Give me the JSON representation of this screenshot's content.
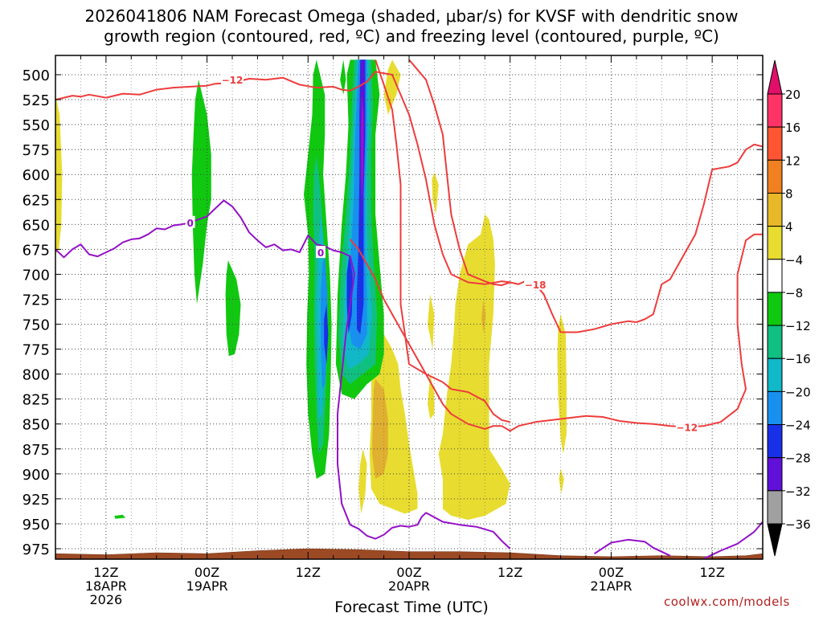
{
  "chart_data": {
    "type": "heatmap",
    "title_line1": "2026041806 NAM Forecast Omega (shaded, μbar/s) for KVSF with dendritic snow",
    "title_line2": "growth region (contoured, red, ºC) and freezing level (contoured, purple, ºC)",
    "xlabel": "Forecast Time (UTC)",
    "ylabel": "",
    "y_axis": {
      "scale": "pressure-inverted",
      "range": [
        990,
        485
      ],
      "ticks": [
        500,
        525,
        550,
        575,
        600,
        625,
        650,
        675,
        700,
        725,
        750,
        775,
        800,
        825,
        850,
        875,
        900,
        925,
        950,
        975
      ]
    },
    "x_axis": {
      "range_hours": [
        6,
        90
      ],
      "ticks": [
        {
          "hour": 12,
          "lines": [
            "12Z",
            "18APR",
            "2026"
          ]
        },
        {
          "hour": 24,
          "lines": [
            "00Z",
            "19APR"
          ]
        },
        {
          "hour": 36,
          "lines": [
            "12Z"
          ]
        },
        {
          "hour": 48,
          "lines": [
            "00Z",
            "20APR"
          ]
        },
        {
          "hour": 60,
          "lines": [
            "12Z"
          ]
        },
        {
          "hour": 72,
          "lines": [
            "00Z",
            "21APR"
          ]
        },
        {
          "hour": 84,
          "lines": [
            "12Z"
          ]
        }
      ]
    },
    "grid": true,
    "colorbar": {
      "labels": [
        "20",
        "16",
        "12",
        "8",
        "4",
        "−4",
        "−8",
        "−12",
        "−16",
        "−20",
        "−24",
        "−28",
        "−32",
        "−36"
      ],
      "colors": [
        "#ff3366",
        "#ff5533",
        "#f08020",
        "#e8b828",
        "#e8dc30",
        "#ffffff",
        "#10c810",
        "#10c080",
        "#10b8c8",
        "#1890f0",
        "#1830e8",
        "#6010d8",
        "#a010d0",
        "#a0a0a0"
      ],
      "top_arrow_color": "#e0106a",
      "bottom_arrow_color": "#000000"
    },
    "omega_colors": {
      "green": "#10c810",
      "teal": "#10c080",
      "cyan": "#10b8c8",
      "lightblue": "#1890f0",
      "blue": "#1830e8",
      "purple": "#6010d8",
      "violet": "#a010d0",
      "yellow": "#e8dc30",
      "gold": "#e0b030"
    },
    "terrain_color": "#9c4a24",
    "contours": [
      {
        "name": "-12",
        "color": "#ee3c3c",
        "labels": [
          {
            "hour": 27,
            "p": 505,
            "text": "−12"
          },
          {
            "hour": 81,
            "p": 853,
            "text": "−12"
          }
        ],
        "lines": [
          [
            [
              6,
              525
            ],
            [
              8,
              521
            ],
            [
              9,
              522
            ],
            [
              10,
              520
            ],
            [
              12,
              523
            ],
            [
              14,
              519
            ],
            [
              16,
              520
            ],
            [
              18,
              515
            ],
            [
              20,
              513
            ],
            [
              22,
              512
            ],
            [
              24,
              511
            ],
            [
              25,
              509
            ],
            [
              27,
              508
            ],
            [
              28,
              506
            ],
            [
              29,
              504
            ],
            [
              31,
              505
            ],
            [
              33,
              503
            ],
            [
              35,
              510
            ],
            [
              37,
              513
            ],
            [
              39,
              512
            ],
            [
              40,
              515
            ],
            [
              41,
              516
            ],
            [
              42,
              512
            ],
            [
              43,
              507
            ],
            [
              44,
              497
            ],
            [
              46,
              500
            ],
            [
              48,
              540
            ],
            [
              49,
              570
            ],
            [
              50,
              605
            ],
            [
              51,
              650
            ],
            [
              52,
              680
            ],
            [
              53,
              700
            ],
            [
              55,
              708
            ],
            [
              57,
              710
            ],
            [
              59,
              707
            ],
            [
              60,
              708
            ],
            [
              61,
              710
            ],
            [
              62,
              706
            ],
            [
              63,
              710
            ],
            [
              64,
              720
            ],
            [
              65,
              740
            ],
            [
              66,
              758
            ],
            [
              68,
              758
            ],
            [
              70,
              755
            ],
            [
              72,
              750
            ],
            [
              74,
              747
            ],
            [
              75,
              748
            ],
            [
              76,
              745
            ],
            [
              77,
              740
            ],
            [
              78,
              710
            ],
            [
              79,
              705
            ],
            [
              80,
              690
            ],
            [
              81,
              675
            ],
            [
              82,
              660
            ],
            [
              83,
              630
            ],
            [
              84,
              595
            ],
            [
              86,
              592
            ],
            [
              87,
              588
            ],
            [
              88,
              575
            ],
            [
              89,
              570
            ],
            [
              90,
              572
            ]
          ],
          [
            [
              90,
              660
            ],
            [
              89,
              660
            ],
            [
              88,
              666
            ],
            [
              87,
              700
            ],
            [
              87,
              750
            ],
            [
              87.5,
              790
            ],
            [
              88,
              815
            ],
            [
              87,
              835
            ],
            [
              85,
              848
            ],
            [
              83,
              852
            ],
            [
              81,
              853
            ],
            [
              79,
              852
            ],
            [
              77,
              850
            ],
            [
              75,
              849
            ],
            [
              73,
              847
            ],
            [
              71,
              843
            ],
            [
              69,
              842
            ],
            [
              67,
              844
            ],
            [
              65,
              846
            ],
            [
              63,
              848
            ],
            [
              61,
              852
            ],
            [
              60,
              857
            ],
            [
              59,
              852
            ],
            [
              58,
              852
            ],
            [
              57,
              855
            ],
            [
              55,
              850
            ],
            [
              53,
              840
            ],
            [
              52,
              830
            ],
            [
              51,
              815
            ],
            [
              50,
              800
            ],
            [
              49,
              785
            ],
            [
              48,
              770
            ],
            [
              47,
              755
            ],
            [
              46,
              740
            ],
            [
              45,
              725
            ],
            [
              44,
              705
            ],
            [
              43,
              690
            ],
            [
              42,
              675
            ],
            [
              41,
              665
            ]
          ]
        ]
      },
      {
        "name": "-18",
        "color": "#ee3c3c",
        "labels": [
          {
            "hour": 63,
            "p": 710,
            "text": "−18"
          }
        ],
        "lines": [
          [
            [
              48,
              485
            ],
            [
              50,
              505
            ],
            [
              51,
              530
            ],
            [
              52,
              560
            ],
            [
              52.5,
              600
            ],
            [
              53,
              640
            ],
            [
              54,
              675
            ],
            [
              55,
              700
            ],
            [
              57,
              707
            ],
            [
              58,
              710
            ],
            [
              59,
              711
            ],
            [
              60,
              708
            ],
            [
              61,
              710
            ]
          ],
          [
            [
              44,
              485
            ],
            [
              45,
              510
            ],
            [
              46,
              535
            ],
            [
              46.5,
              570
            ],
            [
              47,
              610
            ],
            [
              47,
              650
            ],
            [
              47,
              690
            ],
            [
              47,
              730
            ],
            [
              47.5,
              760
            ],
            [
              48,
              790
            ],
            [
              50,
              800
            ],
            [
              52,
              808
            ],
            [
              53,
              815
            ],
            [
              55,
              818
            ],
            [
              57,
              827
            ],
            [
              58,
              840
            ],
            [
              59,
              846
            ],
            [
              60,
              848
            ]
          ]
        ]
      },
      {
        "name": "0",
        "color": "#9410c8",
        "labels": [
          {
            "hour": 22,
            "p": 648,
            "text": "0"
          },
          {
            "hour": 37.5,
            "p": 678,
            "text": "0"
          }
        ],
        "lines": [
          [
            [
              6,
              675
            ],
            [
              7,
              683
            ],
            [
              8,
              675
            ],
            [
              9,
              670
            ],
            [
              10,
              680
            ],
            [
              11,
              682
            ],
            [
              12,
              678
            ],
            [
              13,
              674
            ],
            [
              14,
              668
            ],
            [
              15,
              665
            ],
            [
              16,
              664
            ],
            [
              17,
              660
            ],
            [
              18,
              654
            ],
            [
              19,
              655
            ],
            [
              20,
              651
            ],
            [
              21,
              650
            ],
            [
              22,
              648
            ],
            [
              23,
              645
            ],
            [
              24,
              642
            ],
            [
              25,
              634
            ],
            [
              26,
              626
            ],
            [
              27,
              632
            ],
            [
              28,
              643
            ],
            [
              29,
              658
            ],
            [
              30,
              666
            ],
            [
              31,
              673
            ],
            [
              32,
              670
            ],
            [
              33,
              676
            ],
            [
              34,
              675
            ],
            [
              35,
              678
            ],
            [
              36,
              661
            ],
            [
              37,
              670
            ],
            [
              38,
              672
            ],
            [
              39,
              676
            ],
            [
              40,
              678
            ],
            [
              41,
              682
            ],
            [
              41.5,
              700
            ],
            [
              41,
              730
            ],
            [
              40.5,
              760
            ],
            [
              40,
              800
            ],
            [
              39.5,
              840
            ],
            [
              39.5,
              890
            ],
            [
              40,
              930
            ],
            [
              41,
              951
            ],
            [
              42,
              955
            ],
            [
              43,
              962
            ],
            [
              44,
              965
            ],
            [
              45,
              961
            ],
            [
              46,
              954
            ],
            [
              47,
              952
            ],
            [
              48,
              953
            ],
            [
              49,
              951
            ],
            [
              49.5,
              943
            ],
            [
              50,
              939
            ],
            [
              52,
              948
            ],
            [
              54,
              951
            ],
            [
              56,
              953
            ],
            [
              58,
              958
            ],
            [
              59,
              967
            ],
            [
              60,
              975
            ]
          ],
          [
            [
              70,
              980
            ],
            [
              72,
              969
            ],
            [
              74,
              966
            ],
            [
              76,
              968
            ],
            [
              77,
              974
            ],
            [
              79,
              982
            ]
          ],
          [
            [
              83,
              985
            ],
            [
              85,
              977
            ],
            [
              87,
              970
            ],
            [
              89,
              958
            ],
            [
              90,
              948
            ]
          ]
        ]
      }
    ]
  },
  "footer": {
    "watermark": "coolwx.com/models"
  }
}
